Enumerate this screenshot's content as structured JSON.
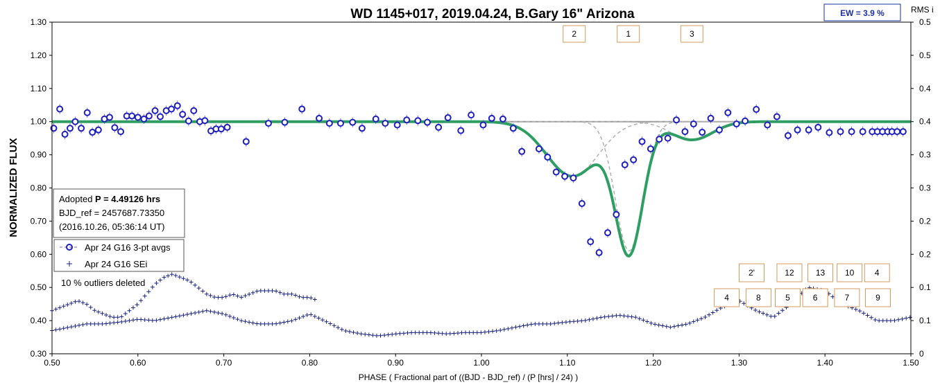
{
  "chart_data": {
    "type": "scatter",
    "title": "WD 1145+017, 2019.04.24, B.Gary 16\" Arizona",
    "xlabel": "PHASE ( Fractional part of ((BJD - BJD_ref) / (P [hrs] / 24) )",
    "ylabel": "NORMALIZED FLUX",
    "y2label": "RMS i",
    "xlim": [
      0.5,
      1.5
    ],
    "ylim": [
      0.3,
      1.3
    ],
    "y2lim": [
      0,
      0.5
    ],
    "xticks": [
      "0.50",
      "0.60",
      "0.70",
      "0.80",
      "0.90",
      "1.00",
      "1.10",
      "1.20",
      "1.30",
      "1.40",
      "1.50"
    ],
    "yticks": [
      "0.30",
      "0.40",
      "0.50",
      "0.60",
      "0.70",
      "0.80",
      "0.90",
      "1.00",
      "1.10",
      "1.20",
      "1.30"
    ],
    "y2ticks": [
      "0",
      "0.1",
      "0.1",
      "0.2",
      "0.2",
      "0.3",
      "0.3",
      "0.4",
      "0.4",
      "0.5",
      "0.5"
    ],
    "ew_label": "EW =  3.9 %",
    "info_box": {
      "line1_prefix": "Adopted ",
      "line1_bold": "P = 4.49126 hrs",
      "line2": "BJD_ref = 2457687.73350",
      "line3": "(2016.10.26, 05:36:14 UT)"
    },
    "legend": [
      {
        "label": "Apr 24 G16 3-pt avgs",
        "marker": "circle",
        "color": "#1f1fbf"
      },
      {
        "label": "Apr 24 G16 SEi",
        "marker": "plus",
        "color": "#1a237e"
      }
    ],
    "note": "10 % outliers deleted",
    "colors": {
      "points": "#1f1fbf",
      "model": "#2e9e63",
      "components": "#b0b0b0",
      "baseline": "#9a9a9a",
      "errorbars": "#6b6bcc",
      "sei": "#1a237e",
      "label_box": "#d69a5a"
    },
    "model": {
      "baseline": 1.0,
      "components": [
        {
          "center": 1.106,
          "depth": 0.165,
          "width": 0.03
        },
        {
          "center": 1.172,
          "depth": 0.39,
          "width": 0.016
        },
        {
          "center": 1.245,
          "depth": 0.055,
          "width": 0.024
        }
      ]
    },
    "dip_labels_top": [
      {
        "text": "2",
        "x": 1.108
      },
      {
        "text": "1",
        "x": 1.171
      },
      {
        "text": "3",
        "x": 1.245
      }
    ],
    "dip_labels_bottom": [
      {
        "text": "2'",
        "x": 1.313,
        "row": 1
      },
      {
        "text": "12",
        "x": 1.357,
        "row": 1
      },
      {
        "text": "13",
        "x": 1.393,
        "row": 1
      },
      {
        "text": "10",
        "x": 1.427,
        "row": 1
      },
      {
        "text": "4",
        "x": 1.459,
        "row": 1
      },
      {
        "text": "4",
        "x": 1.284,
        "row": 2
      },
      {
        "text": "8",
        "x": 1.321,
        "row": 2
      },
      {
        "text": "5",
        "x": 1.355,
        "row": 2
      },
      {
        "text": "6",
        "x": 1.387,
        "row": 2
      },
      {
        "text": "7",
        "x": 1.424,
        "row": 2
      },
      {
        "text": "9",
        "x": 1.46,
        "row": 2
      }
    ],
    "series": [
      {
        "name": "Apr 24 G16 3-pt avgs",
        "x": [
          0.502,
          0.509,
          0.515,
          0.521,
          0.527,
          0.534,
          0.541,
          0.547,
          0.554,
          0.561,
          0.567,
          0.573,
          0.58,
          0.587,
          0.593,
          0.6,
          0.607,
          0.613,
          0.62,
          0.626,
          0.633,
          0.639,
          0.646,
          0.652,
          0.659,
          0.665,
          0.672,
          0.678,
          0.685,
          0.691,
          0.697,
          0.704,
          0.726,
          0.752,
          0.771,
          0.791,
          0.811,
          0.823,
          0.836,
          0.85,
          0.861,
          0.877,
          0.888,
          0.902,
          0.913,
          0.926,
          0.937,
          0.95,
          0.961,
          0.976,
          0.988,
          1.002,
          1.012,
          1.025,
          1.037,
          1.047,
          1.067,
          1.077,
          1.087,
          1.097,
          1.107,
          1.117,
          1.127,
          1.137,
          1.147,
          1.157,
          1.167,
          1.177,
          1.187,
          1.197,
          1.207,
          1.217,
          1.227,
          1.237,
          1.247,
          1.257,
          1.267,
          1.277,
          1.287,
          1.297,
          1.307,
          1.32,
          1.333,
          1.344,
          1.357,
          1.368,
          1.381,
          1.392,
          1.405,
          1.418,
          1.431,
          1.444,
          1.455,
          1.461,
          1.467,
          1.473,
          1.478,
          1.484,
          1.491
        ],
        "y": [
          0.98,
          1.038,
          0.962,
          0.98,
          1.0,
          0.98,
          1.027,
          0.968,
          0.975,
          1.008,
          1.013,
          0.982,
          0.97,
          1.017,
          1.017,
          1.013,
          1.008,
          1.017,
          1.033,
          1.015,
          1.033,
          1.038,
          1.048,
          1.022,
          1.002,
          1.033,
          1.0,
          1.003,
          0.972,
          0.978,
          0.978,
          0.983,
          0.94,
          0.995,
          0.998,
          1.038,
          1.01,
          0.995,
          0.995,
          0.998,
          0.98,
          1.008,
          0.995,
          0.99,
          1.005,
          1.003,
          0.998,
          0.983,
          1.012,
          0.973,
          1.02,
          0.99,
          1.01,
          1.008,
          0.98,
          0.91,
          0.918,
          0.893,
          0.848,
          0.835,
          0.83,
          0.753,
          0.638,
          0.605,
          0.665,
          0.72,
          0.87,
          0.885,
          0.94,
          0.918,
          0.947,
          0.95,
          1.005,
          0.97,
          0.993,
          0.968,
          1.01,
          0.975,
          1.027,
          0.993,
          1.002,
          1.037,
          0.99,
          1.015,
          0.958,
          0.975,
          0.975,
          0.983,
          0.967,
          0.97,
          0.97,
          0.97,
          0.97,
          0.97,
          0.97,
          0.97,
          0.97,
          0.97,
          0.97
        ]
      },
      {
        "name": "Apr 24 G16 SEi",
        "y_axis": "right",
        "trace_a_x": [
          0.5,
          0.51,
          0.52,
          0.53,
          0.54,
          0.55,
          0.56,
          0.57,
          0.58,
          0.59,
          0.6,
          0.61,
          0.62,
          0.63,
          0.64,
          0.65,
          0.66,
          0.67,
          0.68,
          0.69,
          0.7,
          0.71,
          0.72,
          0.73,
          0.74,
          0.75,
          0.76,
          0.77,
          0.78,
          0.79,
          0.8,
          0.81
        ],
        "trace_a_y": [
          0.065,
          0.07,
          0.075,
          0.08,
          0.075,
          0.065,
          0.06,
          0.055,
          0.055,
          0.065,
          0.075,
          0.09,
          0.105,
          0.115,
          0.12,
          0.115,
          0.11,
          0.1,
          0.09,
          0.085,
          0.085,
          0.09,
          0.085,
          0.09,
          0.095,
          0.095,
          0.095,
          0.09,
          0.09,
          0.085,
          0.085,
          0.08
        ],
        "trace_b_x": [
          0.5,
          0.52,
          0.54,
          0.56,
          0.58,
          0.6,
          0.62,
          0.64,
          0.66,
          0.68,
          0.7,
          0.72,
          0.74,
          0.76,
          0.78,
          0.8,
          0.82,
          0.84,
          0.86,
          0.88,
          0.9,
          0.92,
          0.94,
          0.96,
          0.98,
          1.0,
          1.02,
          1.04,
          1.06,
          1.08,
          1.1,
          1.12,
          1.14,
          1.16,
          1.18,
          1.2,
          1.22,
          1.24,
          1.26,
          1.28,
          1.3,
          1.32,
          1.34,
          1.36,
          1.38,
          1.4,
          1.42,
          1.44,
          1.46,
          1.48,
          1.5
        ],
        "trace_b_y": [
          0.035,
          0.04,
          0.045,
          0.045,
          0.048,
          0.052,
          0.05,
          0.055,
          0.06,
          0.065,
          0.06,
          0.05,
          0.045,
          0.045,
          0.05,
          0.06,
          0.048,
          0.035,
          0.03,
          0.027,
          0.03,
          0.032,
          0.032,
          0.03,
          0.032,
          0.032,
          0.035,
          0.04,
          0.045,
          0.045,
          0.048,
          0.05,
          0.055,
          0.058,
          0.055,
          0.045,
          0.04,
          0.045,
          0.055,
          0.07,
          0.08,
          0.065,
          0.055,
          0.075,
          0.1,
          0.095,
          0.075,
          0.065,
          0.05,
          0.05,
          0.055
        ]
      }
    ],
    "error_bar_half_height": 0.015
  }
}
